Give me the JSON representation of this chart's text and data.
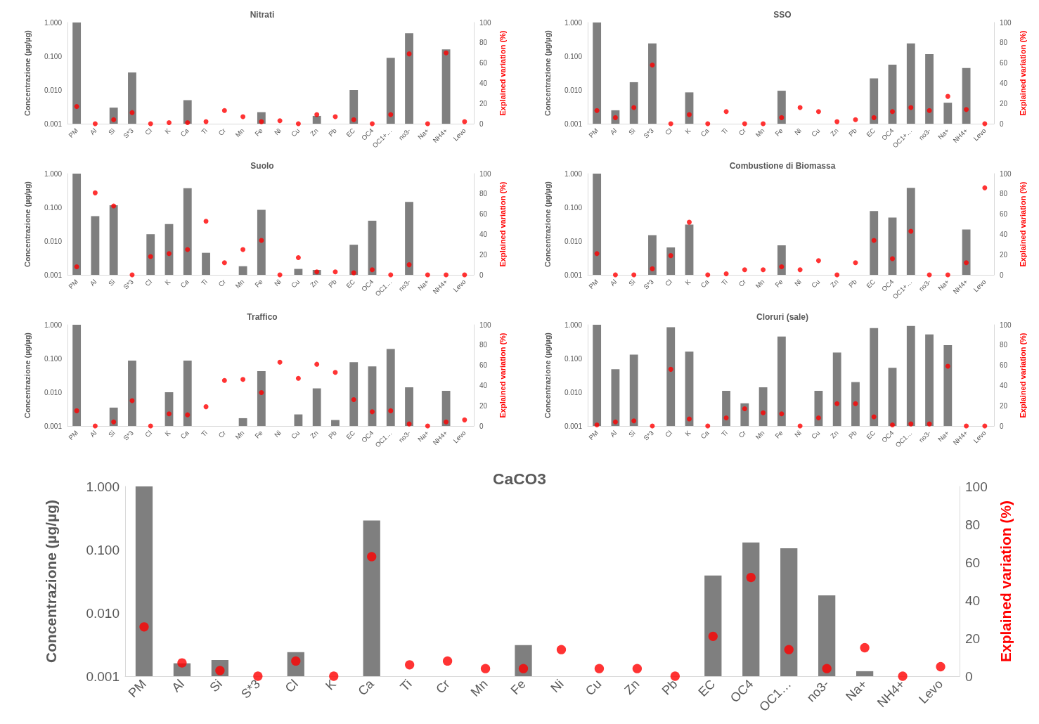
{
  "chart_data": [
    {
      "type": "bar",
      "title": "Nitrati",
      "categories": [
        "PM",
        "Al",
        "Si",
        "S*3",
        "Cl",
        "K",
        "Ca",
        "Ti",
        "Cr",
        "Mn",
        "Fe",
        "Ni",
        "Cu",
        "Zn",
        "Pb",
        "EC",
        "OC4",
        "OC1+…",
        "no3-",
        "Na+",
        "NH4+",
        "Levo"
      ],
      "ylabel": "Concentrazione (µg/µg)",
      "y2label": "Explained variation (%)",
      "log": "y",
      "ylim": [
        0.001,
        1
      ],
      "yticks": [
        {
          "value": 0.001,
          "label": "0.001"
        },
        {
          "value": 0.01,
          "label": "0.010"
        },
        {
          "value": 0.1,
          "label": "0.100"
        },
        {
          "value": 1,
          "label": "1.000"
        }
      ],
      "y2lim": [
        0,
        100
      ],
      "y2ticks": [
        0,
        20,
        40,
        60,
        80,
        100
      ],
      "grid": false,
      "series": [
        {
          "color": "#7f7f7f",
          "values": [
            1,
            null,
            0.003,
            0.033,
            null,
            null,
            0.005,
            null,
            null,
            null,
            0.0022,
            null,
            null,
            0.0017,
            null,
            0.01,
            null,
            0.09,
            0.48,
            null,
            0.16,
            null
          ]
        },
        {
          "type": "scatter",
          "axis": "y2",
          "marker": "circle",
          "color": "#ff0000",
          "values": [
            17,
            0,
            4,
            11,
            0,
            1,
            1,
            2,
            13,
            7,
            2,
            3,
            0,
            9,
            7,
            4,
            0,
            9,
            69,
            0,
            70,
            2
          ]
        }
      ]
    },
    {
      "type": "bar",
      "title": "SSO",
      "categories": [
        "PM",
        "Al",
        "Si",
        "S*3",
        "Cl",
        "K",
        "Ca",
        "Ti",
        "Cr",
        "Mn",
        "Fe",
        "Ni",
        "Cu",
        "Zn",
        "Pb",
        "EC",
        "OC4",
        "OC1+…",
        "no3-",
        "Na+",
        "NH4+",
        "Levo"
      ],
      "ylabel": "Concentrazione (µg/µg)",
      "y2label": "Explained variation (%)",
      "log": "y",
      "ylim": [
        0.001,
        1
      ],
      "yticks": [
        {
          "value": 0.001,
          "label": "0.001"
        },
        {
          "value": 0.01,
          "label": "0.010"
        },
        {
          "value": 0.1,
          "label": "0.100"
        },
        {
          "value": 1,
          "label": "1.000"
        }
      ],
      "y2lim": [
        0,
        100
      ],
      "y2ticks": [
        0,
        20,
        40,
        60,
        80,
        100
      ],
      "grid": false,
      "series": [
        {
          "color": "#7f7f7f",
          "values": [
            1,
            0.0025,
            0.017,
            0.24,
            null,
            0.0085,
            null,
            null,
            null,
            null,
            0.0095,
            null,
            null,
            null,
            null,
            0.022,
            0.056,
            0.24,
            0.115,
            0.0042,
            0.045,
            null
          ]
        },
        {
          "type": "scatter",
          "axis": "y2",
          "marker": "circle",
          "color": "#ff0000",
          "values": [
            13,
            6,
            16,
            58,
            0,
            9,
            0,
            12,
            0,
            0,
            6,
            16,
            12,
            2,
            4,
            6,
            12,
            16,
            13,
            27,
            14,
            0
          ]
        }
      ]
    },
    {
      "type": "bar",
      "title": "Suolo",
      "categories": [
        "PM",
        "Al",
        "Si",
        "S*3",
        "Cl",
        "K",
        "Ca",
        "Ti",
        "Cr",
        "Mn",
        "Fe",
        "Ni",
        "Cu",
        "Zn",
        "Pb",
        "EC",
        "OC4",
        "OC1…",
        "no3-",
        "Na+",
        "NH4+",
        "Levo"
      ],
      "ylabel": "Concentrazione (µg/µg)",
      "y2label": "Explained variation (%)",
      "log": "y",
      "ylim": [
        0.001,
        1
      ],
      "yticks": [
        {
          "value": 0.001,
          "label": "0.001"
        },
        {
          "value": 0.01,
          "label": "0.010"
        },
        {
          "value": 0.1,
          "label": "0.100"
        },
        {
          "value": 1,
          "label": "1.000"
        }
      ],
      "y2lim": [
        0,
        100
      ],
      "y2ticks": [
        0,
        20,
        40,
        60,
        80,
        100
      ],
      "grid": false,
      "series": [
        {
          "color": "#7f7f7f",
          "values": [
            1,
            0.055,
            0.115,
            null,
            0.016,
            0.032,
            0.37,
            0.0045,
            null,
            0.0018,
            0.085,
            null,
            0.0015,
            0.0014,
            null,
            0.0078,
            0.04,
            null,
            0.145,
            null,
            null,
            null
          ]
        },
        {
          "type": "scatter",
          "axis": "y2",
          "marker": "circle",
          "color": "#ff0000",
          "values": [
            8,
            81,
            68,
            0,
            18,
            21,
            25,
            53,
            12,
            25,
            34,
            0,
            17,
            3,
            3,
            2,
            5,
            0,
            10,
            0,
            0,
            0
          ]
        }
      ]
    },
    {
      "type": "bar",
      "title": "Combustione di Biomassa",
      "categories": [
        "PM",
        "Al",
        "Si",
        "S*3",
        "Cl",
        "K",
        "Ca",
        "Ti",
        "Cr",
        "Mn",
        "Fe",
        "Ni",
        "Cu",
        "Zn",
        "Pb",
        "EC",
        "OC4",
        "OC1+…",
        "no3-",
        "Na+",
        "NH4+",
        "Levo"
      ],
      "ylabel": "Concentrazione (µg/µg)",
      "y2label": "Explained variation (%)",
      "log": "y",
      "ylim": [
        0.001,
        1
      ],
      "yticks": [
        {
          "value": 0.001,
          "label": "0.001"
        },
        {
          "value": 0.01,
          "label": "0.010"
        },
        {
          "value": 0.1,
          "label": "0.100"
        },
        {
          "value": 1,
          "label": "1.000"
        }
      ],
      "y2lim": [
        0,
        100
      ],
      "y2ticks": [
        0,
        20,
        40,
        60,
        80,
        100
      ],
      "grid": false,
      "series": [
        {
          "color": "#7f7f7f",
          "values": [
            1,
            null,
            null,
            0.015,
            0.0065,
            0.031,
            null,
            null,
            null,
            null,
            0.0075,
            null,
            null,
            null,
            null,
            0.078,
            0.05,
            0.38,
            null,
            null,
            0.022,
            null
          ]
        },
        {
          "type": "scatter",
          "axis": "y2",
          "marker": "circle",
          "color": "#ff0000",
          "values": [
            21,
            0,
            0,
            6,
            19,
            52,
            0,
            1,
            5,
            5,
            8,
            5,
            14,
            0,
            12,
            34,
            16,
            43,
            0,
            0,
            12,
            86
          ]
        }
      ]
    },
    {
      "type": "bar",
      "title": "Traffico",
      "categories": [
        "PM",
        "Al",
        "Si",
        "S*3",
        "Cl",
        "K",
        "Ca",
        "Ti",
        "Cr",
        "Mn",
        "Fe",
        "Ni",
        "Cu",
        "Zn",
        "Pb",
        "EC",
        "OC4",
        "OC1…",
        "no3-",
        "Na+",
        "NH4+",
        "Levo"
      ],
      "ylabel": "Concentrazione (µg/µg)",
      "y2label": "Explained variation (%)",
      "log": "y",
      "ylim": [
        0.001,
        1
      ],
      "yticks": [
        {
          "value": 0.001,
          "label": "0.001"
        },
        {
          "value": 0.01,
          "label": "0.010"
        },
        {
          "value": 0.1,
          "label": "0.100"
        },
        {
          "value": 1,
          "label": "1.000"
        }
      ],
      "y2lim": [
        0,
        100
      ],
      "y2ticks": [
        0,
        20,
        40,
        60,
        80,
        100
      ],
      "grid": false,
      "series": [
        {
          "color": "#7f7f7f",
          "values": [
            1,
            null,
            0.0035,
            0.087,
            null,
            0.01,
            0.087,
            null,
            null,
            0.0017,
            0.042,
            null,
            0.0022,
            0.013,
            0.0015,
            0.078,
            0.058,
            0.19,
            0.014,
            null,
            0.011,
            null
          ]
        },
        {
          "type": "scatter",
          "axis": "y2",
          "marker": "circle",
          "color": "#ff0000",
          "values": [
            15,
            0,
            4,
            25,
            0,
            12,
            11,
            19,
            45,
            46,
            33,
            63,
            47,
            61,
            53,
            26,
            14,
            15,
            2,
            0,
            4,
            6
          ]
        }
      ]
    },
    {
      "type": "bar",
      "title": "Cloruri (sale)",
      "categories": [
        "PM",
        "Al",
        "Si",
        "S*3",
        "Cl",
        "K",
        "Ca",
        "Ti",
        "Cr",
        "Mn",
        "Fe",
        "Ni",
        "Cu",
        "Zn",
        "Pb",
        "EC",
        "OC4",
        "OC1…",
        "no3-",
        "Na+",
        "NH4+",
        "Levo"
      ],
      "ylabel": "Concentrazione (µg/µg)",
      "y2label": "Explained variation (%)",
      "log": "y",
      "ylim": [
        0.001,
        1
      ],
      "yticks": [
        {
          "value": 0.001,
          "label": "0.001"
        },
        {
          "value": 0.01,
          "label": "0.010"
        },
        {
          "value": 0.1,
          "label": "0.100"
        },
        {
          "value": 1,
          "label": "1.000"
        }
      ],
      "y2lim": [
        0,
        100
      ],
      "y2ticks": [
        0,
        20,
        40,
        60,
        80,
        100
      ],
      "grid": false,
      "series": [
        {
          "color": "#7f7f7f",
          "values": [
            1,
            0.048,
            0.13,
            null,
            0.85,
            0.16,
            null,
            0.011,
            0.0047,
            0.014,
            0.45,
            null,
            0.011,
            0.15,
            0.02,
            0.8,
            0.053,
            0.92,
            0.52,
            0.25,
            null,
            null
          ]
        },
        {
          "type": "scatter",
          "axis": "y2",
          "marker": "circle",
          "color": "#ff0000",
          "values": [
            1,
            4,
            5,
            0,
            56,
            7,
            0,
            8,
            17,
            13,
            12,
            0,
            8,
            22,
            22,
            9,
            1,
            2,
            2,
            59,
            0,
            0
          ]
        }
      ]
    },
    {
      "type": "bar",
      "title": "CaCO3",
      "categories": [
        "PM",
        "Al",
        "Si",
        "S*3",
        "Cl",
        "K",
        "Ca",
        "Ti",
        "Cr",
        "Mn",
        "Fe",
        "Ni",
        "Cu",
        "Zn",
        "Pb",
        "EC",
        "OC4",
        "OC1…",
        "no3-",
        "Na+",
        "NH4+",
        "Levo"
      ],
      "ylabel": "Concentrazione (µg/µg)",
      "y2label": "Explained variation (%)",
      "log": "y",
      "ylim": [
        0.001,
        1
      ],
      "yticks": [
        {
          "value": 0.001,
          "label": "0.001"
        },
        {
          "value": 0.01,
          "label": "0.010"
        },
        {
          "value": 0.1,
          "label": "0.100"
        },
        {
          "value": 1,
          "label": "1.000"
        }
      ],
      "y2lim": [
        0,
        100
      ],
      "y2ticks": [
        0,
        20,
        40,
        60,
        80,
        100
      ],
      "grid": false,
      "series": [
        {
          "color": "#7f7f7f",
          "values": [
            1,
            0.0016,
            0.0018,
            null,
            0.0024,
            null,
            0.29,
            null,
            null,
            null,
            0.0031,
            null,
            null,
            null,
            null,
            0.039,
            0.13,
            0.105,
            0.019,
            0.0012,
            null,
            null
          ]
        },
        {
          "type": "scatter",
          "axis": "y2",
          "marker": "circle",
          "color": "#ff0000",
          "values": [
            26,
            7,
            3,
            0,
            8,
            0,
            63,
            6,
            8,
            4,
            4,
            14,
            4,
            4,
            0,
            21,
            52,
            14,
            4,
            15,
            0,
            5
          ]
        }
      ]
    }
  ]
}
